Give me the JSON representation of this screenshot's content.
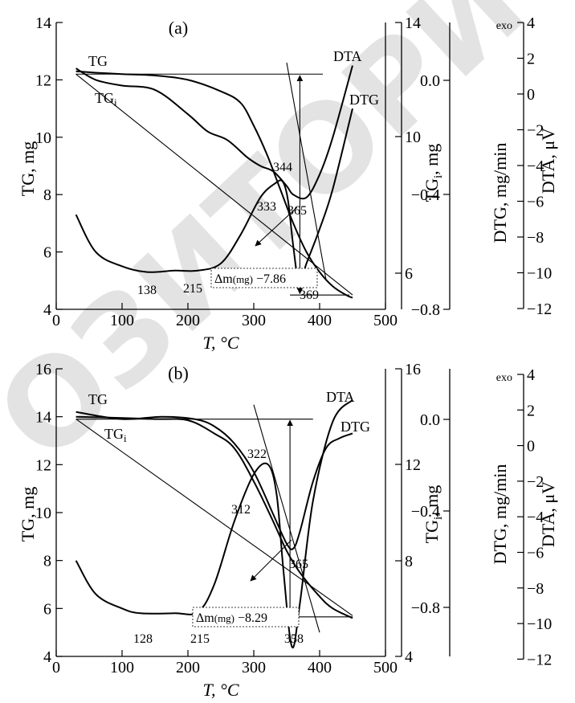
{
  "watermark": "ОЗИТОРИ",
  "chart_data": [
    {
      "type": "line",
      "panel_label": "(a)",
      "xlabel": "T, °C",
      "xticks": [
        0,
        100,
        200,
        300,
        400,
        500
      ],
      "xlim": [
        0,
        500
      ],
      "left_axis": {
        "label": "TG, mg",
        "ticks": [
          4,
          6,
          8,
          10,
          12,
          14
        ],
        "ylim": [
          4,
          14
        ]
      },
      "tgi_axis": {
        "label": "TGi, mg",
        "ticks": [
          6,
          10,
          14
        ]
      },
      "dtg_axis": {
        "label": "DTG, mg/min",
        "ticks": [
          "0.0",
          "−0.4",
          "−0.8"
        ]
      },
      "dta_axis": {
        "label": "DTA, μV",
        "ticks": [
          4,
          2,
          0,
          -2,
          -4,
          -6,
          -8,
          -10,
          -12
        ],
        "ticks_text": [
          "4",
          "2",
          "0",
          "−2",
          "−4",
          "−6",
          "−8",
          "−10",
          "−12"
        ],
        "top_note": "exo"
      },
      "curve_labels": {
        "tg": "TG",
        "tgi": "TGi",
        "dta": "DTA",
        "dtg": "DTG"
      },
      "annotations": [
        "344",
        "333",
        "365",
        "369",
        "138",
        "215"
      ],
      "mass_loss_box": {
        "symbol": "Δm",
        "unit": "(mg)",
        "value": "−7.86"
      },
      "series": [
        {
          "name": "TG",
          "x": [
            30,
            60,
            100,
            150,
            200,
            250,
            280,
            300,
            320,
            340,
            360,
            380,
            400,
            420,
            440,
            450
          ],
          "y": [
            12.3,
            12.25,
            12.2,
            12.15,
            12.0,
            11.6,
            11.2,
            10.4,
            9.4,
            8.2,
            7.0,
            6.0,
            5.3,
            4.8,
            4.5,
            4.4
          ]
        },
        {
          "name": "TGi",
          "x": [
            30,
            60,
            100,
            150,
            200,
            230,
            260,
            290,
            310,
            330,
            350,
            360,
            380,
            400,
            420,
            450
          ],
          "y": [
            12.4,
            12.0,
            11.8,
            11.65,
            10.8,
            10.2,
            9.9,
            9.3,
            9.0,
            8.8,
            8.3,
            8.0,
            7.9,
            8.7,
            10.0,
            12.5
          ]
        },
        {
          "name": "DTA",
          "x": [
            30,
            60,
            100,
            138,
            180,
            215,
            250,
            280,
            310,
            333,
            344,
            352,
            360,
            369,
            380,
            400,
            420,
            450
          ],
          "y": [
            7.3,
            6.0,
            5.5,
            5.3,
            5.35,
            5.35,
            5.6,
            6.6,
            7.9,
            8.4,
            8.45,
            7.8,
            6.2,
            4.9,
            5.6,
            6.8,
            8.2,
            11.0
          ]
        },
        {
          "name": "Baseline",
          "x": [
            30,
            450
          ],
          "y": [
            12.2,
            4.5
          ]
        },
        {
          "name": "Tangent",
          "x": [
            350,
            410
          ],
          "y": [
            12.6,
            5.0
          ]
        }
      ],
      "markers": [
        {
          "label": "Top reference",
          "x": [
            30,
            405
          ],
          "y": [
            12.2,
            12.2
          ]
        },
        {
          "label": "Bottom reference",
          "x": [
            355,
            445
          ],
          "y": [
            4.5,
            4.5
          ]
        },
        {
          "label": "Mass loss arrow",
          "x": [
            370,
            370
          ],
          "y": [
            12.15,
            4.55
          ]
        }
      ]
    },
    {
      "type": "line",
      "panel_label": "(b)",
      "xlabel": "T, °C",
      "xticks": [
        0,
        100,
        200,
        300,
        400,
        500
      ],
      "xlim": [
        0,
        500
      ],
      "left_axis": {
        "label": "TG, mg",
        "ticks": [
          4,
          6,
          8,
          10,
          12,
          14,
          16
        ],
        "ylim": [
          4,
          16
        ]
      },
      "tgi_axis": {
        "label": "TGi, mg",
        "ticks": [
          4,
          8,
          12,
          16
        ]
      },
      "dtg_axis": {
        "label": "DTG, mg/min",
        "ticks": [
          "0.0",
          "−0.4",
          "−0.8"
        ]
      },
      "dta_axis": {
        "label": "DTA, μV",
        "ticks": [
          4,
          2,
          0,
          -2,
          -4,
          -6,
          -8,
          -10,
          -12
        ],
        "ticks_text": [
          "4",
          "2",
          "0",
          "−2",
          "−4",
          "−6",
          "−8",
          "−10",
          "−12"
        ],
        "top_note": "exo"
      },
      "curve_labels": {
        "tg": "TG",
        "tgi": "TGi",
        "dta": "DTA",
        "dtg": "DTG"
      },
      "annotations": [
        "322",
        "312",
        "365",
        "358",
        "128",
        "215"
      ],
      "mass_loss_box": {
        "symbol": "Δm",
        "unit": "(mg)",
        "value": "−8.29"
      },
      "series": [
        {
          "name": "TG",
          "x": [
            30,
            100,
            150,
            200,
            240,
            270,
            300,
            330,
            350,
            370,
            400,
            420,
            450
          ],
          "y": [
            14.0,
            13.95,
            13.9,
            13.85,
            13.3,
            12.7,
            11.3,
            9.6,
            8.4,
            7.5,
            6.5,
            6.0,
            5.6
          ]
        },
        {
          "name": "TGi",
          "x": [
            30,
            100,
            160,
            210,
            240,
            270,
            300,
            330,
            350,
            360,
            370,
            390,
            410,
            430,
            450
          ],
          "y": [
            14.2,
            13.9,
            14.0,
            13.9,
            13.6,
            12.9,
            11.7,
            9.9,
            8.7,
            8.5,
            9.2,
            11.3,
            12.7,
            13.1,
            13.3
          ]
        },
        {
          "name": "DTA",
          "x": [
            30,
            60,
            100,
            128,
            180,
            215,
            240,
            270,
            300,
            322,
            335,
            345,
            358,
            370,
            390,
            420,
            450
          ],
          "y": [
            8.0,
            6.6,
            6.0,
            5.8,
            5.8,
            5.85,
            7.0,
            9.6,
            11.6,
            12.0,
            10.7,
            7.6,
            4.4,
            6.2,
            10.5,
            13.8,
            14.7
          ]
        },
        {
          "name": "Baseline",
          "x": [
            30,
            450
          ],
          "y": [
            13.9,
            5.7
          ]
        },
        {
          "name": "Tangent",
          "x": [
            300,
            400
          ],
          "y": [
            14.5,
            5.0
          ]
        }
      ],
      "markers": [
        {
          "label": "Top reference",
          "x": [
            30,
            390
          ],
          "y": [
            13.9,
            13.9
          ]
        },
        {
          "label": "Bottom reference",
          "x": [
            330,
            450
          ],
          "y": [
            5.65,
            5.65
          ]
        },
        {
          "label": "Mass loss arrow",
          "x": [
            355,
            355
          ],
          "y": [
            13.85,
            5.7
          ]
        }
      ]
    }
  ]
}
